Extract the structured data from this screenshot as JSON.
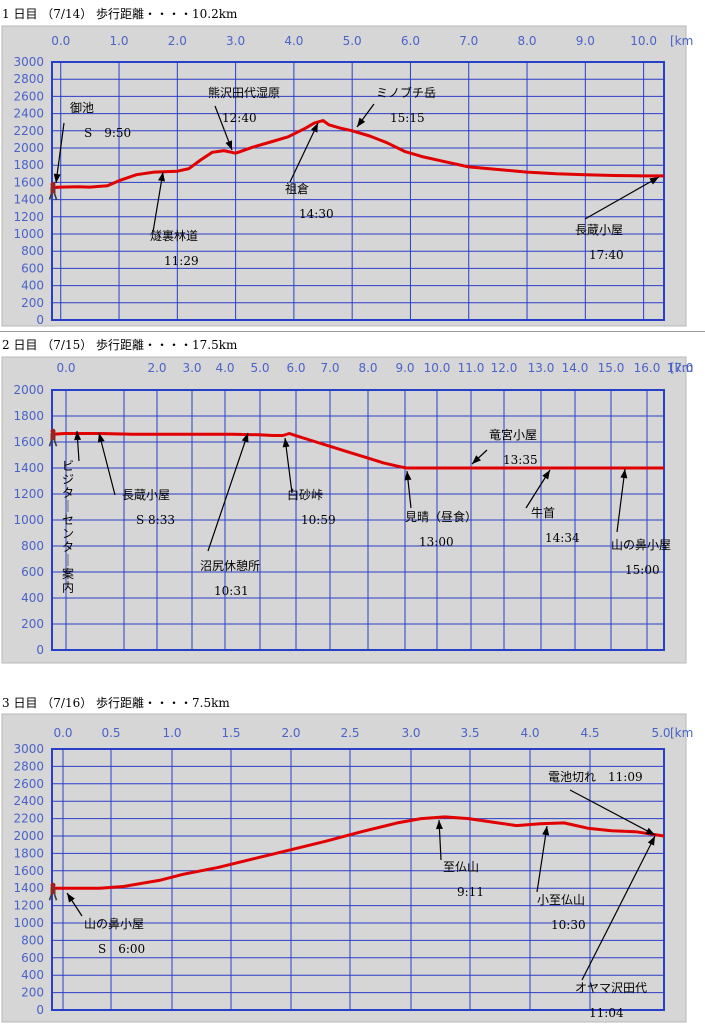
{
  "chart_data": [
    {
      "type": "line",
      "title": "1 日目 （7/14） 歩行距離・・・・10.2km",
      "x_tick_labels": [
        "0.0",
        "1.0",
        "2.0",
        "3.0",
        "4.0",
        "5.0",
        "6.0",
        "7.0",
        "8.0",
        "9.0",
        "10.0"
      ],
      "x_unit_label": "[km",
      "xlim": [
        -0.15,
        10.35
      ],
      "ylim": [
        0,
        3000
      ],
      "y_ticks": [
        0,
        200,
        400,
        600,
        800,
        1000,
        1200,
        1400,
        1600,
        1800,
        2000,
        2200,
        2400,
        2600,
        2800,
        3000
      ],
      "grid": true,
      "x": [
        -0.15,
        0.0,
        0.3,
        0.5,
        0.8,
        1.0,
        1.3,
        1.6,
        2.0,
        2.2,
        2.4,
        2.6,
        2.8,
        3.0,
        3.3,
        3.6,
        3.9,
        4.2,
        4.35,
        4.5,
        4.6,
        4.8,
        5.0,
        5.3,
        5.6,
        5.9,
        6.2,
        6.6,
        7.0,
        7.5,
        8.0,
        8.5,
        9.0,
        9.5,
        10.0,
        10.35
      ],
      "y": [
        1540,
        1545,
        1550,
        1545,
        1560,
        1620,
        1690,
        1720,
        1730,
        1760,
        1860,
        1950,
        1970,
        1940,
        2010,
        2070,
        2130,
        2230,
        2290,
        2320,
        2270,
        2230,
        2200,
        2140,
        2060,
        1960,
        1900,
        1840,
        1780,
        1750,
        1720,
        1700,
        1690,
        1680,
        1675,
        1675
      ],
      "annotations": [
        {
          "lines": [
            "御池",
            "S　9:50"
          ],
          "x": 0.0,
          "y": 1545
        },
        {
          "lines": [
            "熊沢田代湿原",
            "12:40"
          ],
          "x": 2.65,
          "y": 1960
        },
        {
          "lines": [
            "ミノブチ岳",
            "15:15"
          ],
          "x": 5.05,
          "y": 2200
        },
        {
          "lines": [
            "燧裏林道",
            "11:29"
          ],
          "x": 1.7,
          "y": 1720
        },
        {
          "lines": [
            "祖倉",
            "14:30"
          ],
          "x": 4.45,
          "y": 2320
        },
        {
          "lines": [
            "長蔵小屋",
            "17:40"
          ],
          "x": 10.35,
          "y": 1675
        }
      ]
    },
    {
      "type": "line",
      "title": "2 日目 （7/15） 歩行距離・・・・17.5km",
      "x_tick_labels": [
        "0.0",
        "",
        "2.0",
        "3.0",
        "4.0",
        "5.0",
        "6.0",
        "7.0",
        "8.0",
        "9.0",
        "10.0",
        "11.0",
        "12.0",
        "13.0",
        "14.0",
        "15.0",
        "16.0",
        "17.0"
      ],
      "x_unit_label": "[km",
      "xlim": [
        -0.4,
        17.9
      ],
      "ylim": [
        0,
        2000
      ],
      "y_ticks": [
        0,
        200,
        400,
        600,
        800,
        1000,
        1200,
        1400,
        1600,
        1800,
        2000
      ],
      "grid": true,
      "x": [
        -0.4,
        0.0,
        0.5,
        1.0,
        2.0,
        3.0,
        4.0,
        5.0,
        5.8,
        6.2,
        6.5,
        6.7,
        7.0,
        7.5,
        8.0,
        8.5,
        9.0,
        9.5,
        10.0,
        10.2,
        11.0,
        12.0,
        13.0,
        14.0,
        15.0,
        16.0,
        17.0,
        17.9
      ],
      "y": [
        1660,
        1665,
        1665,
        1665,
        1660,
        1660,
        1660,
        1660,
        1655,
        1650,
        1650,
        1665,
        1640,
        1600,
        1560,
        1520,
        1480,
        1440,
        1410,
        1400,
        1400,
        1400,
        1400,
        1400,
        1400,
        1400,
        1400,
        1400
      ],
      "annotations": [
        {
          "lines": [
            "ビジターセンター案内"
          ],
          "x": 0.3,
          "y": 1665,
          "vertical": true
        },
        {
          "lines": [
            "長蔵小屋",
            "S 8:33"
          ],
          "x": 0.7,
          "y": 1665
        },
        {
          "lines": [
            "沼尻休憩所",
            "10:31"
          ],
          "x": 5.6,
          "y": 1660
        },
        {
          "lines": [
            "白砂峠",
            "10:59"
          ],
          "x": 6.6,
          "y": 1660
        },
        {
          "lines": [
            "見晴（昼食）",
            "13:00"
          ],
          "x": 10.1,
          "y": 1400
        },
        {
          "lines": [
            "竜宮小屋",
            "13:35"
          ],
          "x": 12.2,
          "y": 1400
        },
        {
          "lines": [
            "牛首",
            "14:34"
          ],
          "x": 14.5,
          "y": 1400
        },
        {
          "lines": [
            "山の鼻小屋",
            "15:00"
          ],
          "x": 16.5,
          "y": 1400
        }
      ]
    },
    {
      "type": "line",
      "title": "3 日目 （7/16） 歩行距離・・・・7.5km",
      "x_tick_labels": [
        "0.0",
        "0.5",
        "1.0",
        "1.5",
        "2.0",
        "2.5",
        "3.0",
        "3.5",
        "4.0",
        "4.5",
        "5.0"
      ],
      "x_unit_label": "[km",
      "xlim": [
        -0.1,
        5.04
      ],
      "ylim": [
        0,
        3000
      ],
      "y_ticks": [
        0,
        200,
        400,
        600,
        800,
        1000,
        1200,
        1400,
        1600,
        1800,
        2000,
        2200,
        2400,
        2600,
        2800,
        3000
      ],
      "grid": true,
      "x": [
        -0.1,
        0.0,
        0.3,
        0.5,
        0.8,
        1.0,
        1.3,
        1.6,
        1.9,
        2.2,
        2.5,
        2.8,
        3.0,
        3.2,
        3.4,
        3.6,
        3.8,
        4.0,
        4.2,
        4.4,
        4.6,
        4.8,
        5.04
      ],
      "y": [
        1400,
        1400,
        1400,
        1420,
        1490,
        1560,
        1640,
        1740,
        1840,
        1940,
        2050,
        2150,
        2200,
        2220,
        2200,
        2160,
        2120,
        2140,
        2150,
        2090,
        2060,
        2050,
        2000
      ],
      "annotations": [
        {
          "lines": [
            "山の鼻小屋",
            "S　6:00"
          ],
          "x": 0.0,
          "y": 1400
        },
        {
          "lines": [
            "至仏山",
            "9:11"
          ],
          "x": 3.25,
          "y": 2220
        },
        {
          "lines": [
            "小至仏山",
            "10:30"
          ],
          "x": 4.1,
          "y": 2150
        },
        {
          "lines": [
            "電池切れ　11:09"
          ],
          "x": 5.0,
          "y": 2000
        },
        {
          "lines": [
            "オヤマ沢田代",
            "11:04"
          ],
          "x": 4.95,
          "y": 2020
        }
      ]
    }
  ]
}
